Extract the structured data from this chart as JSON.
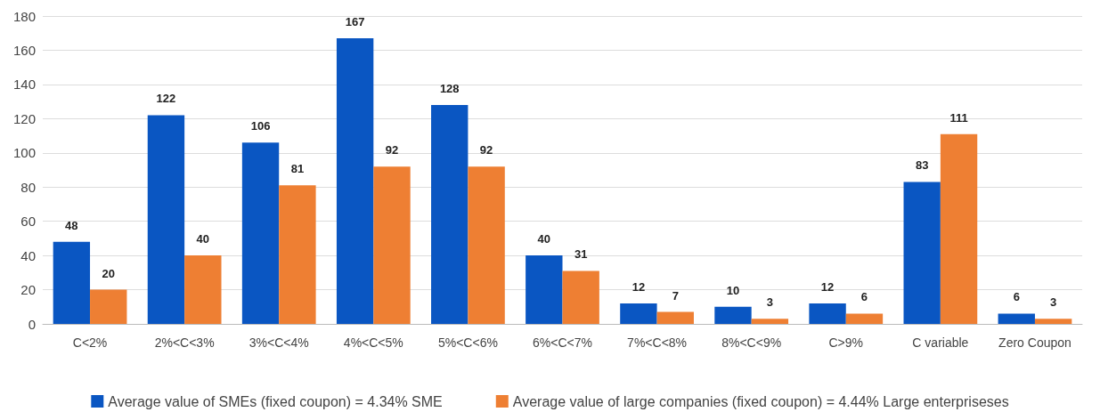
{
  "chart_data": {
    "type": "bar",
    "categories": [
      "C<2%",
      "2%<C<3%",
      "3%<C<4%",
      "4%<C<5%",
      "5%<C<6%",
      "6%<C<7%",
      "7%<C<8%",
      "8%<C<9%",
      "C>9%",
      "C variable",
      "Zero Coupon"
    ],
    "series": [
      {
        "name": "Average value of SMEs (fixed coupon) = 4.34% SME",
        "color": "#0a56c2",
        "values": [
          48,
          122,
          106,
          167,
          128,
          40,
          12,
          10,
          12,
          83,
          6
        ]
      },
      {
        "name": "Average value of large companies (fixed coupon) = 4.44% Large enterpriseses",
        "color": "#ee7f33",
        "values": [
          20,
          40,
          81,
          92,
          92,
          31,
          7,
          3,
          6,
          111,
          3
        ]
      }
    ],
    "ylim": [
      0,
      180
    ],
    "yticks": [
      0,
      20,
      40,
      60,
      80,
      100,
      120,
      140,
      160,
      180
    ],
    "grid": "y",
    "legend": "bottom",
    "data_labels": true
  }
}
